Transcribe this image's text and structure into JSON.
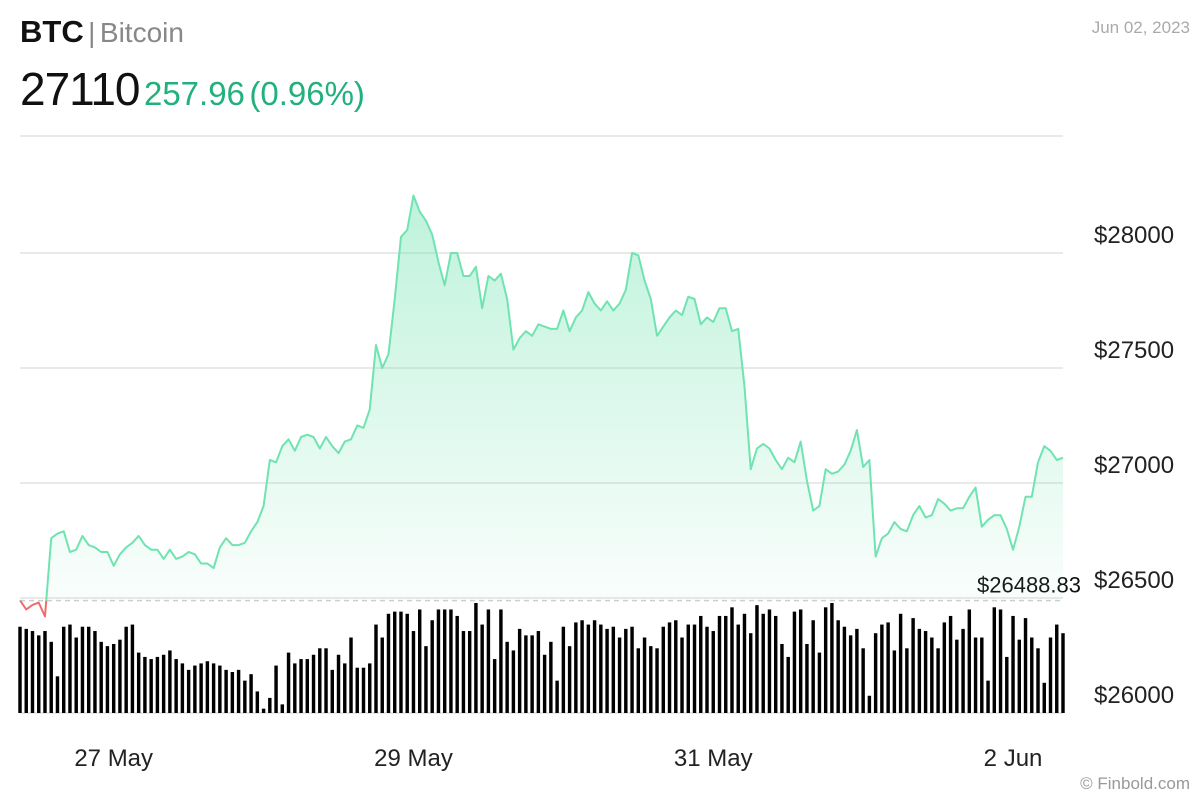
{
  "chart_data": {
    "type": "line",
    "symbol": "BTC",
    "name": "Bitcoin",
    "price": 27110,
    "change": 257.96,
    "change_percent": "(0.96%)",
    "date": "Jun 02, 2023",
    "source": "© Finbold.com",
    "reference_value": 26488.83,
    "reference_label": "$26488.83",
    "up_color": "#6fe3b0",
    "down_color": "#f26b6b",
    "volume_color": "#000000",
    "ylim": [
      26000,
      28500
    ],
    "yticks": [
      {
        "value": 26000,
        "label": "$26000"
      },
      {
        "value": 26500,
        "label": "$26500"
      },
      {
        "value": 27000,
        "label": "$27000"
      },
      {
        "value": 27500,
        "label": "$27500"
      },
      {
        "value": 28000,
        "label": "$28000"
      }
    ],
    "grid": true,
    "categories": [
      null,
      null,
      null,
      null,
      null,
      null,
      null,
      null,
      null,
      null,
      null,
      null,
      null,
      null,
      null,
      "27 May",
      null,
      null,
      null,
      null,
      null,
      null,
      null,
      null,
      null,
      null,
      null,
      null,
      null,
      null,
      null,
      null,
      null,
      null,
      null,
      null,
      null,
      null,
      null,
      null,
      null,
      null,
      null,
      null,
      null,
      null,
      null,
      null,
      null,
      null,
      null,
      null,
      null,
      null,
      null,
      null,
      null,
      null,
      null,
      null,
      null,
      null,
      null,
      "29 May",
      null,
      null,
      null,
      null,
      null,
      null,
      null,
      null,
      null,
      null,
      null,
      null,
      null,
      null,
      null,
      null,
      null,
      null,
      null,
      null,
      null,
      null,
      null,
      null,
      null,
      null,
      null,
      null,
      null,
      null,
      null,
      null,
      null,
      null,
      null,
      null,
      null,
      null,
      null,
      null,
      null,
      null,
      null,
      null,
      null,
      null,
      null,
      "31 May",
      null,
      null,
      null,
      null,
      null,
      null,
      null,
      null,
      null,
      null,
      null,
      null,
      null,
      null,
      null,
      null,
      null,
      null,
      null,
      null,
      null,
      null,
      null,
      null,
      null,
      null,
      null,
      null,
      null,
      null,
      null,
      null,
      null,
      null,
      null,
      null,
      null,
      null,
      null,
      null,
      null,
      null,
      null,
      null,
      null,
      null,
      null,
      "2 Jun",
      null,
      null,
      null,
      null,
      null,
      null,
      null,
      null
    ],
    "values": [
      26490,
      26450,
      26470,
      26480,
      26420,
      26760,
      26780,
      26790,
      26700,
      26710,
      26770,
      26730,
      26720,
      26700,
      26700,
      26640,
      26690,
      26720,
      26740,
      26770,
      26730,
      26710,
      26710,
      26670,
      26710,
      26670,
      26680,
      26700,
      26690,
      26650,
      26650,
      26630,
      26720,
      26760,
      26730,
      26730,
      26740,
      26790,
      26830,
      26900,
      27100,
      27090,
      27160,
      27190,
      27140,
      27200,
      27210,
      27200,
      27150,
      27200,
      27160,
      27130,
      27180,
      27190,
      27250,
      27240,
      27320,
      27600,
      27500,
      27560,
      27800,
      28070,
      28100,
      28250,
      28180,
      28140,
      28080,
      27960,
      27860,
      28000,
      28000,
      27900,
      27900,
      27940,
      27760,
      27900,
      27880,
      27910,
      27800,
      27580,
      27630,
      27660,
      27640,
      27690,
      27680,
      27670,
      27670,
      27750,
      27660,
      27720,
      27750,
      27830,
      27780,
      27750,
      27790,
      27750,
      27780,
      27840,
      28000,
      27990,
      27880,
      27800,
      27640,
      27680,
      27720,
      27750,
      27730,
      27810,
      27800,
      27690,
      27720,
      27700,
      27760,
      27760,
      27660,
      27670,
      27420,
      27060,
      27150,
      27170,
      27150,
      27100,
      27060,
      27110,
      27090,
      27180,
      27010,
      26880,
      26900,
      27060,
      27040,
      27050,
      27080,
      27140,
      27230,
      27070,
      27100,
      26680,
      26760,
      26780,
      26830,
      26800,
      26790,
      26860,
      26900,
      26850,
      26860,
      26930,
      26910,
      26880,
      26890,
      26890,
      26940,
      26980,
      26810,
      26840,
      26860,
      26860,
      26800,
      26710,
      26810,
      26940,
      26940,
      27090,
      27160,
      27140,
      27100,
      27110
    ],
    "volume": [
      80,
      78,
      76,
      72,
      76,
      66,
      34,
      80,
      82,
      70,
      80,
      80,
      76,
      66,
      62,
      64,
      68,
      80,
      82,
      56,
      52,
      50,
      52,
      54,
      58,
      50,
      46,
      40,
      44,
      46,
      48,
      46,
      44,
      40,
      38,
      40,
      30,
      36,
      20,
      4,
      14,
      44,
      8,
      56,
      46,
      50,
      50,
      54,
      60,
      60,
      40,
      54,
      46,
      70,
      42,
      42,
      46,
      82,
      70,
      92,
      94,
      94,
      92,
      76,
      96,
      62,
      86,
      96,
      96,
      96,
      90,
      76,
      76,
      102,
      82,
      96,
      50,
      96,
      66,
      58,
      78,
      72,
      72,
      76,
      54,
      66,
      30,
      80,
      62,
      84,
      86,
      82,
      86,
      82,
      78,
      80,
      70,
      78,
      80,
      60,
      70,
      62,
      60,
      80,
      84,
      86,
      70,
      82,
      82,
      90,
      80,
      76,
      90,
      90,
      98,
      82,
      92,
      74,
      100,
      92,
      96,
      90,
      64,
      52,
      94,
      96,
      64,
      86,
      56,
      98,
      102,
      86,
      80,
      72,
      78,
      60,
      16,
      74,
      82,
      84,
      58,
      92,
      60,
      88,
      78,
      76,
      70,
      60,
      84,
      90,
      68,
      78,
      96,
      70,
      70,
      30,
      98,
      96,
      52,
      90,
      68,
      88,
      70,
      60,
      28,
      70,
      82,
      74
    ]
  }
}
